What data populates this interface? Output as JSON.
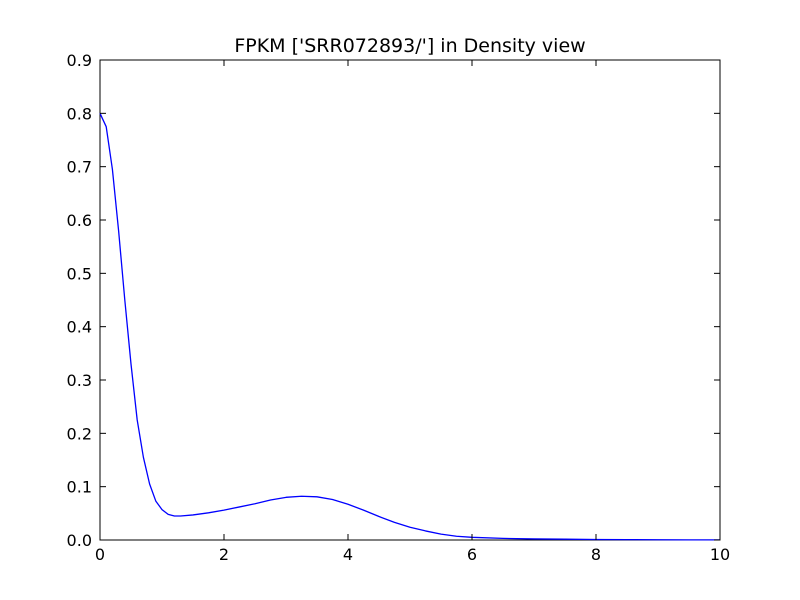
{
  "chart_data": {
    "type": "line",
    "title": "FPKM ['SRR072893/'] in Density view",
    "xlabel": "",
    "ylabel": "",
    "xlim": [
      0,
      10
    ],
    "ylim": [
      0,
      0.9
    ],
    "x_ticks": [
      0,
      2,
      4,
      6,
      8,
      10
    ],
    "y_ticks": [
      0.0,
      0.1,
      0.2,
      0.3,
      0.4,
      0.5,
      0.6,
      0.7,
      0.8,
      0.9
    ],
    "x_tick_labels": [
      "0",
      "2",
      "4",
      "6",
      "8",
      "10"
    ],
    "y_tick_labels": [
      "0.0",
      "0.1",
      "0.2",
      "0.3",
      "0.4",
      "0.5",
      "0.6",
      "0.7",
      "0.8",
      "0.9"
    ],
    "grid": false,
    "series": [
      {
        "color": "#0000ff",
        "x": [
          0,
          0.1,
          0.2,
          0.3,
          0.4,
          0.5,
          0.6,
          0.7,
          0.8,
          0.9,
          1.0,
          1.1,
          1.2,
          1.3,
          1.5,
          1.75,
          2.0,
          2.25,
          2.5,
          2.75,
          3.0,
          3.25,
          3.5,
          3.75,
          4.0,
          4.25,
          4.5,
          4.75,
          5.0,
          5.25,
          5.5,
          5.75,
          6.0,
          6.5,
          7.0,
          7.5,
          8.0,
          8.5,
          9.0,
          9.5,
          10.0
        ],
        "y": [
          0.8,
          0.775,
          0.695,
          0.58,
          0.45,
          0.33,
          0.225,
          0.155,
          0.105,
          0.073,
          0.057,
          0.048,
          0.045,
          0.045,
          0.047,
          0.051,
          0.056,
          0.062,
          0.068,
          0.075,
          0.08,
          0.082,
          0.081,
          0.076,
          0.067,
          0.056,
          0.044,
          0.033,
          0.024,
          0.017,
          0.011,
          0.007,
          0.005,
          0.003,
          0.002,
          0.0015,
          0.001,
          0.0007,
          0.0005,
          0.0003,
          0.0002
        ]
      }
    ]
  }
}
